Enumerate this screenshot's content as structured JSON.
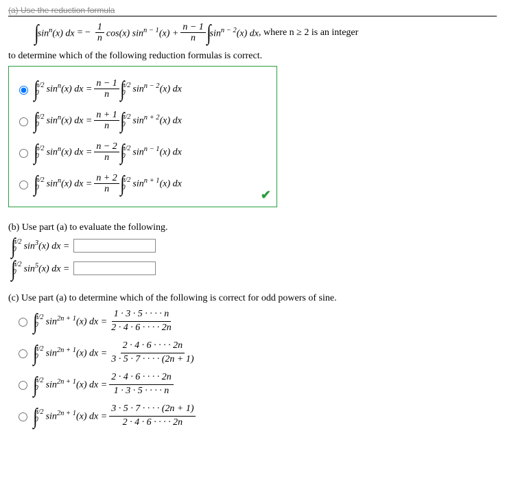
{
  "cutoff_text": "(a) Use the reduction formula",
  "main_formula": {
    "integrand_left": "sin",
    "sup_left": "n",
    "of_left": "(x) dx",
    "eq": " = −",
    "frac1_num": "1",
    "frac1_den": "n",
    "mid1": "cos(x) sin",
    "sup_mid": "n − 1",
    "mid2": "(x) + ",
    "frac2_num": "n − 1",
    "frac2_den": "n",
    "right_int": "sin",
    "sup_right": "n − 2",
    "right_tail": "(x) dx",
    "where": ", where n ≥ 2 is an integer"
  },
  "prompt_a": "to determine which of the following reduction formulas is correct.",
  "bounds": {
    "upper": "π/2",
    "lower": "0"
  },
  "lhs": {
    "fn": "sin",
    "sup": "n",
    "arg": "(x) dx ="
  },
  "options_a": [
    {
      "coef_num": "n − 1",
      "coef_den": "n",
      "rhs_sup": "n − 2"
    },
    {
      "coef_num": "n + 1",
      "coef_den": "n",
      "rhs_sup": "n + 2"
    },
    {
      "coef_num": "n − 2",
      "coef_den": "n",
      "rhs_sup": "n − 1"
    },
    {
      "coef_num": "n + 2",
      "coef_den": "n",
      "rhs_sup": "n + 1"
    }
  ],
  "rhs_tail": "(x) dx",
  "selected_a": 0,
  "checkmark": "✔",
  "part_b_label": "(b) Use part (a) to evaluate the following.",
  "b_items": [
    {
      "sup": "3"
    },
    {
      "sup": "5"
    }
  ],
  "b_int_fn": "sin",
  "b_int_tail": "(x) dx =",
  "part_c_label": "(c) Use part (a) to determine which of the following is correct for odd powers of sine.",
  "c_lhs": {
    "fn": "sin",
    "sup": "2n + 1",
    "tail": "(x) dx ="
  },
  "options_c": [
    {
      "num": "1 · 3 · 5 · · · · n",
      "den": "2 · 4 · 6 · · · · 2n"
    },
    {
      "num": "2 · 4 · 6 · · · · 2n",
      "den": "3 · 5 · 7 · · · · (2n + 1)"
    },
    {
      "num": "2 · 4 · 6 · · · · 2n",
      "den": "1 · 3 · 5 · · · · n"
    },
    {
      "num": "3 · 5 · 7 · · · · (2n + 1)",
      "den": "2 · 4 · 6 · · · · 2n"
    }
  ]
}
